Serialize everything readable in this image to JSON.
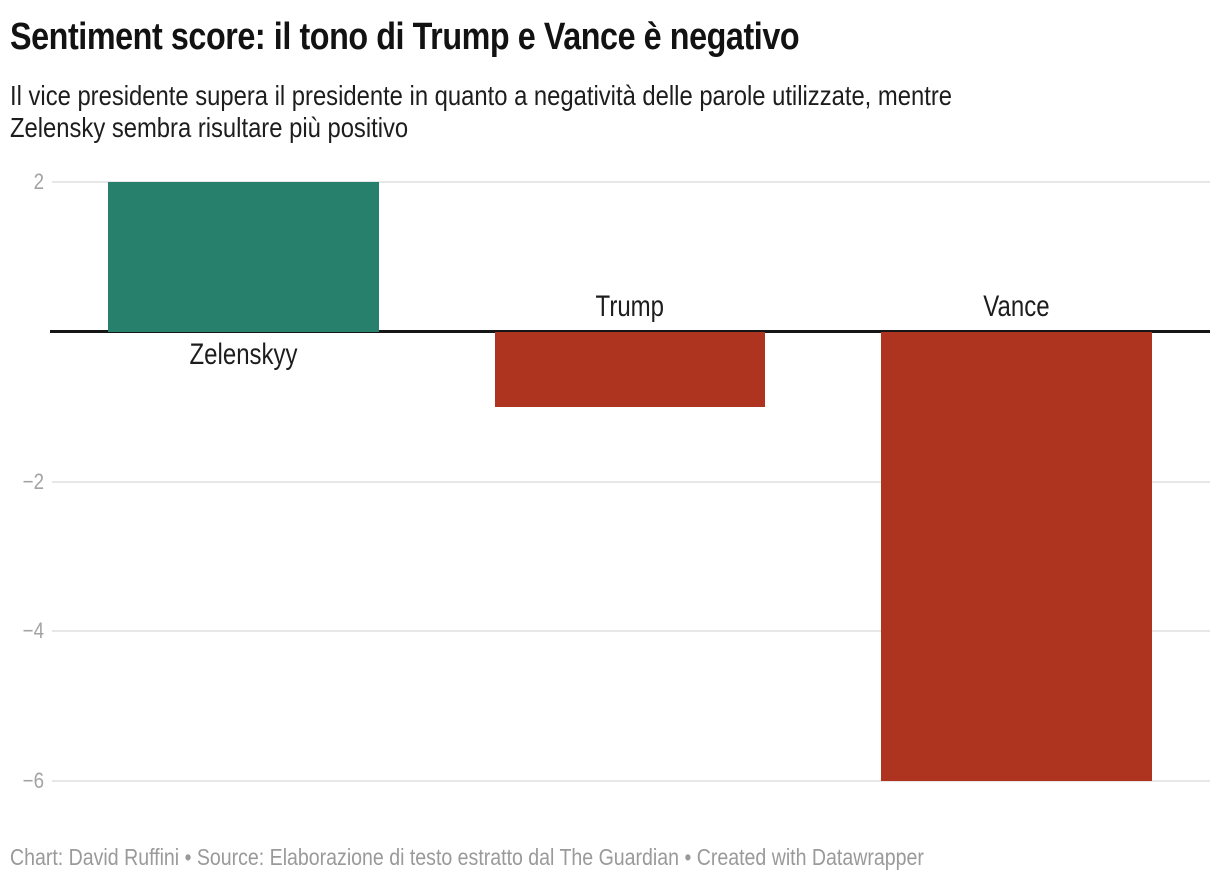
{
  "header": {
    "title": "Sentiment score: il tono di Trump e Vance è negativo",
    "subtitle": "Il vice presidente supera il presidente in quanto a negatività delle parole utilizzate, mentre Zelensky sembra risultare più positivo",
    "subtitle_lines": [
      "Il vice presidente supera il presidente in quanto a negatività delle parole utilizzate, mentre",
      "Zelensky sembra risultare più positivo"
    ]
  },
  "chart_data": {
    "type": "bar",
    "title": "Sentiment score: il tono di Trump e Vance è negativo",
    "categories": [
      "Zelenskyy",
      "Trump",
      "Vance"
    ],
    "values": [
      2,
      -1,
      -6
    ],
    "colors": [
      "#26806b",
      "#ae3420",
      "#ae3420"
    ],
    "xlabel": "",
    "ylabel": "",
    "ylim": [
      -6,
      2
    ],
    "baseline_value": 0,
    "grid": true,
    "legend": "none",
    "yticks": [
      {
        "value": 2,
        "label": "2"
      },
      {
        "value": -2,
        "label": "−2"
      },
      {
        "value": -4,
        "label": "−4"
      },
      {
        "value": -6,
        "label": "−6"
      }
    ]
  },
  "colors": {
    "positive_bar": "#26806b",
    "negative_bar": "#ae3420",
    "gridline": "#e7e7e7",
    "baseline": "#161616",
    "tick_label": "#a3a3a3",
    "category_label": "#1d1d1d",
    "footer_text": "#9a9a9a"
  },
  "footer": {
    "text": "Chart: David Ruffini • Source: Elaborazione di testo estratto dal The Guardian • Created with Datawrapper"
  }
}
